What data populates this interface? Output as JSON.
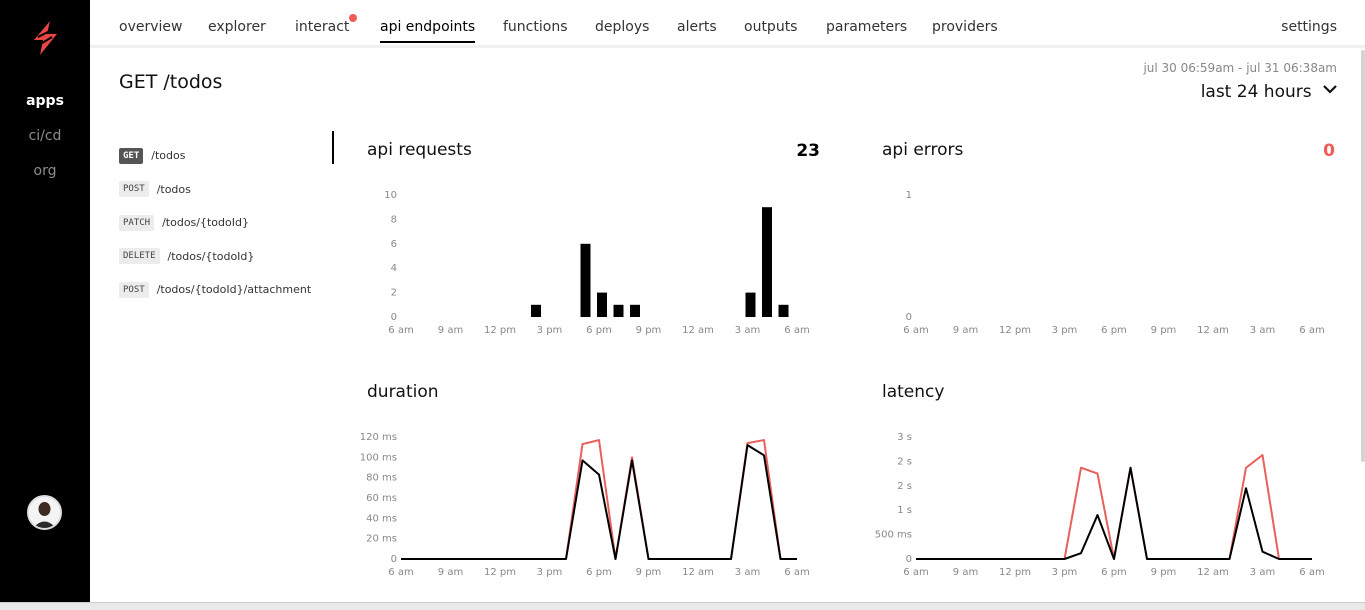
{
  "sidebar": {
    "items": [
      {
        "label": "apps",
        "active": true
      },
      {
        "label": "ci/cd",
        "active": false
      },
      {
        "label": "org",
        "active": false
      }
    ]
  },
  "tabs": [
    {
      "label": "overview"
    },
    {
      "label": "explorer"
    },
    {
      "label": "interact",
      "notification": true
    },
    {
      "label": "api endpoints",
      "active": true
    },
    {
      "label": "functions"
    },
    {
      "label": "deploys"
    },
    {
      "label": "alerts"
    },
    {
      "label": "outputs"
    },
    {
      "label": "parameters"
    },
    {
      "label": "providers"
    },
    {
      "label": "settings"
    }
  ],
  "page_title": "GET /todos",
  "time_range": {
    "caption": "jul 30 06:59am - jul 31 06:38am",
    "selected": "last 24 hours"
  },
  "endpoints": [
    {
      "method": "GET",
      "path": "/todos",
      "active": true
    },
    {
      "method": "POST",
      "path": "/todos"
    },
    {
      "method": "PATCH",
      "path": "/todos/{todoId}"
    },
    {
      "method": "DELETE",
      "path": "/todos/{todoId}"
    },
    {
      "method": "POST",
      "path": "/todos/{todoId}/attachment"
    }
  ],
  "colors": {
    "accent": "#f25a5a",
    "bar": "#000000",
    "line_primary": "#000000",
    "line_secondary": "#e8605c"
  },
  "chart_data": [
    {
      "id": "requests",
      "type": "bar",
      "title": "api requests",
      "total": "23",
      "x_labels": [
        "6 am",
        "9 am",
        "12 pm",
        "3 pm",
        "6 pm",
        "9 pm",
        "12 am",
        "3 am",
        "6 am"
      ],
      "y_ticks": [
        "0",
        "2",
        "4",
        "6",
        "8",
        "10"
      ],
      "ylim": [
        0,
        10
      ],
      "bars": [
        {
          "hour": 8,
          "value": 1
        },
        {
          "hour": 11,
          "value": 6
        },
        {
          "hour": 12,
          "value": 2
        },
        {
          "hour": 13,
          "value": 1
        },
        {
          "hour": 14,
          "value": 1
        },
        {
          "hour": 21,
          "value": 2
        },
        {
          "hour": 22,
          "value": 9
        },
        {
          "hour": 23,
          "value": 1
        }
      ]
    },
    {
      "id": "errors",
      "type": "bar",
      "title": "api errors",
      "total": "0",
      "x_labels": [
        "6 am",
        "9 am",
        "12 pm",
        "3 pm",
        "6 pm",
        "9 pm",
        "12 am",
        "3 am",
        "6 am"
      ],
      "y_ticks": [
        "0",
        "1"
      ],
      "ylim": [
        0,
        1
      ],
      "bars": []
    },
    {
      "id": "duration",
      "type": "line",
      "title": "duration",
      "x_labels": [
        "6 am",
        "9 am",
        "12 pm",
        "3 pm",
        "6 pm",
        "9 pm",
        "12 am",
        "3 am",
        "6 am"
      ],
      "y_ticks": [
        "0",
        "20 ms",
        "40 ms",
        "60 ms",
        "80 ms",
        "100 ms",
        "120 ms"
      ],
      "ylim": [
        0,
        120
      ],
      "x": [
        0,
        1,
        2,
        3,
        4,
        5,
        6,
        7,
        8,
        9,
        10,
        11,
        12,
        13,
        14,
        15,
        16,
        17,
        18,
        19,
        20,
        21,
        22,
        23,
        24
      ],
      "series": [
        {
          "values": [
            0,
            0,
            0,
            0,
            0,
            0,
            0,
            0,
            0,
            0,
            0,
            97,
            83,
            0,
            97,
            0,
            0,
            0,
            0,
            0,
            0,
            112,
            102,
            0,
            0
          ]
        },
        {
          "values": [
            0,
            0,
            0,
            0,
            0,
            0,
            0,
            0,
            0,
            0,
            0,
            113,
            117,
            0,
            100,
            0,
            0,
            0,
            0,
            0,
            0,
            114,
            117,
            0,
            0
          ]
        }
      ]
    },
    {
      "id": "latency",
      "type": "line",
      "title": "latency",
      "x_labels": [
        "6 am",
        "9 am",
        "12 pm",
        "3 pm",
        "6 pm",
        "9 pm",
        "12 am",
        "3 am",
        "6 am"
      ],
      "y_ticks": [
        "0",
        "500 ms",
        "1 s",
        "2 s",
        "2 s",
        "3 s"
      ],
      "ylim": [
        0,
        2.5
      ],
      "x": [
        0,
        1,
        2,
        3,
        4,
        5,
        6,
        7,
        8,
        9,
        10,
        11,
        12,
        13,
        14,
        15,
        16,
        17,
        18,
        19,
        20,
        21,
        22,
        23,
        24
      ],
      "series": [
        {
          "values": [
            0,
            0,
            0,
            0,
            0,
            0,
            0,
            0,
            0,
            0,
            0.12,
            0.9,
            0,
            1.87,
            0,
            0,
            0,
            0,
            0,
            0,
            1.45,
            0.15,
            0,
            0,
            0
          ]
        },
        {
          "values": [
            0,
            0,
            0,
            0,
            0,
            0,
            0,
            0,
            0,
            0,
            1.87,
            1.75,
            0,
            1.87,
            0,
            0,
            0,
            0,
            0,
            0,
            1.87,
            2.13,
            0,
            0,
            0
          ]
        }
      ]
    }
  ]
}
